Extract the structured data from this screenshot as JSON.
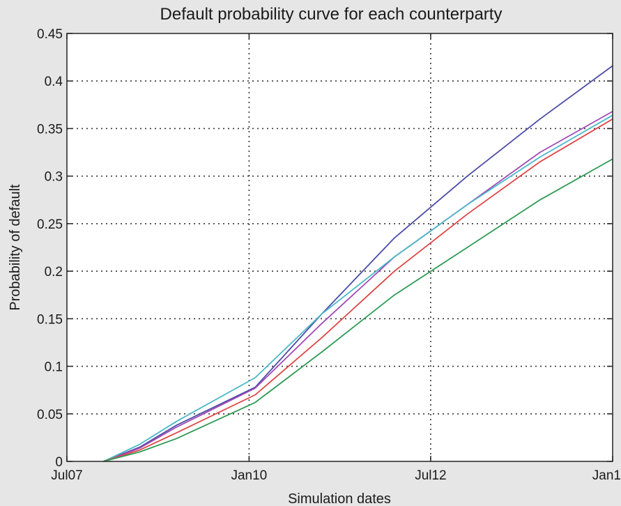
{
  "chart_data": {
    "type": "line",
    "title": "Default probability curve for each counterparty",
    "xlabel": "Simulation dates",
    "ylabel": "Probability of default",
    "x_ticks": [
      "2007-07-01",
      "2010-01-01",
      "2012-07-01",
      "2015-01-01"
    ],
    "x_tick_labels": [
      "Jul07",
      "Jan10",
      "Jul12",
      "Jan1"
    ],
    "xlim": [
      "2007-07-01",
      "2015-01-01"
    ],
    "ylim": [
      0,
      0.45
    ],
    "y_ticks": [
      0,
      0.05,
      0.1,
      0.15,
      0.2,
      0.25,
      0.3,
      0.35,
      0.4,
      0.45
    ],
    "y_tick_labels": [
      "0",
      "0.05",
      "0.1",
      "0.15",
      "0.2",
      "0.25",
      "0.3",
      "0.35",
      "0.4",
      "0.45"
    ],
    "grid": true,
    "legend": "none",
    "x": [
      "2008-01-01",
      "2008-07-01",
      "2009-01-01",
      "2010-02-01",
      "2011-01-01",
      "2012-01-01",
      "2013-01-01",
      "2014-01-01",
      "2015-01-01"
    ],
    "series": [
      {
        "color": "#4b4ba8",
        "values": [
          0,
          0.015,
          0.038,
          0.078,
          0.155,
          0.235,
          0.3,
          0.36,
          0.416
        ]
      },
      {
        "color": "#a24bb4",
        "values": [
          0,
          0.014,
          0.036,
          0.077,
          0.145,
          0.215,
          0.27,
          0.325,
          0.368
        ]
      },
      {
        "color": "#4bb8c8",
        "values": [
          0,
          0.018,
          0.042,
          0.088,
          0.155,
          0.215,
          0.27,
          0.32,
          0.364
        ]
      },
      {
        "color": "#e04646",
        "values": [
          0,
          0.012,
          0.03,
          0.07,
          0.13,
          0.2,
          0.26,
          0.315,
          0.36
        ]
      },
      {
        "color": "#2e9a55",
        "values": [
          0,
          0.01,
          0.024,
          0.062,
          0.115,
          0.175,
          0.225,
          0.275,
          0.318
        ]
      }
    ]
  }
}
